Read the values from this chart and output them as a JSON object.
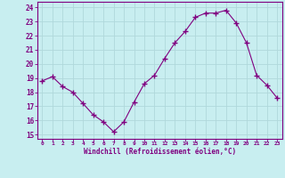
{
  "x": [
    0,
    1,
    2,
    3,
    4,
    5,
    6,
    7,
    8,
    9,
    10,
    11,
    12,
    13,
    14,
    15,
    16,
    17,
    18,
    19,
    20,
    21,
    22,
    23
  ],
  "y": [
    18.8,
    19.1,
    18.4,
    18.0,
    17.2,
    16.4,
    15.9,
    15.2,
    15.9,
    17.3,
    18.6,
    19.2,
    20.4,
    21.5,
    22.3,
    23.3,
    23.6,
    23.6,
    23.8,
    22.9,
    21.5,
    19.2,
    18.5,
    17.6
  ],
  "line_color": "#800080",
  "marker": "+",
  "marker_size": 4,
  "bg_color": "#c8eef0",
  "grid_color": "#b0d8db",
  "axis_color": "#800080",
  "xlabel": "Windchill (Refroidissement éolien,°C)",
  "ylabel_ticks": [
    15,
    16,
    17,
    18,
    19,
    20,
    21,
    22,
    23,
    24
  ],
  "xlim": [
    -0.5,
    23.5
  ],
  "ylim": [
    14.7,
    24.4
  ],
  "xticks": [
    0,
    1,
    2,
    3,
    4,
    5,
    6,
    7,
    8,
    9,
    10,
    11,
    12,
    13,
    14,
    15,
    16,
    17,
    18,
    19,
    20,
    21,
    22,
    23
  ]
}
